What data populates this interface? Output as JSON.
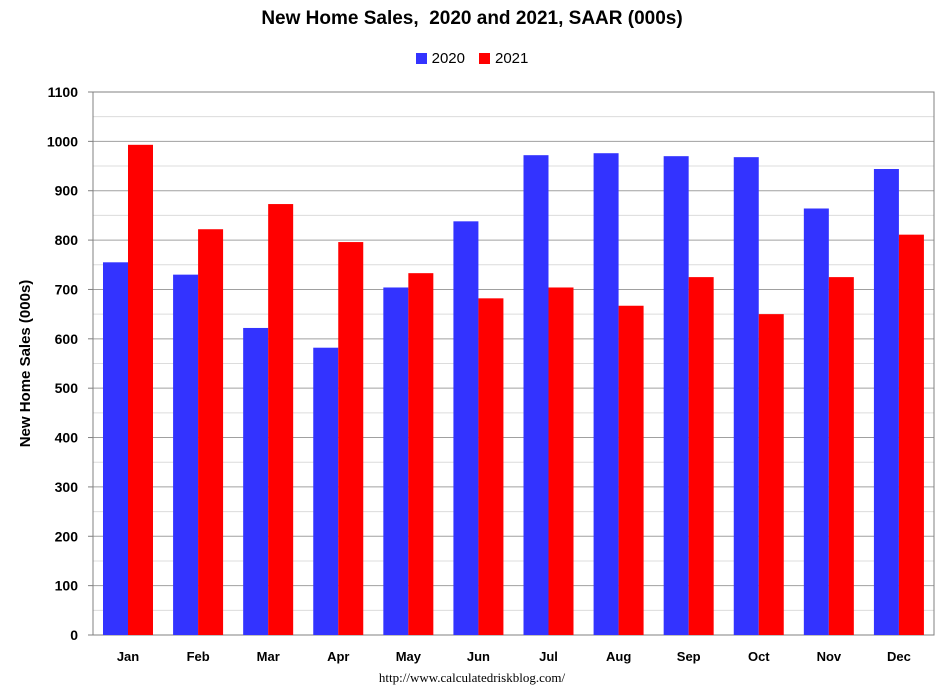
{
  "chart_data": {
    "type": "bar",
    "title": "New Home Sales,  2020 and 2021, SAAR (000s)",
    "xlabel": "",
    "ylabel": "New Home Sales (000s)",
    "ylim": [
      0,
      1100
    ],
    "yticks": [
      0,
      100,
      200,
      300,
      400,
      500,
      600,
      700,
      800,
      900,
      1000,
      1100
    ],
    "grid": true,
    "legend_position": "top-center",
    "categories": [
      "Jan",
      "Feb",
      "Mar",
      "Apr",
      "May",
      "Jun",
      "Jul",
      "Aug",
      "Sep",
      "Oct",
      "Nov",
      "Dec"
    ],
    "series": [
      {
        "name": "2020",
        "color": "#3333ff",
        "values": [
          755,
          730,
          622,
          582,
          704,
          838,
          972,
          976,
          970,
          968,
          864,
          944
        ]
      },
      {
        "name": "2021",
        "color": "#ff0000",
        "values": [
          993,
          822,
          873,
          796,
          733,
          682,
          704,
          667,
          725,
          650,
          725,
          811
        ]
      }
    ]
  },
  "source": "http://www.calculatedriskblog.com/"
}
